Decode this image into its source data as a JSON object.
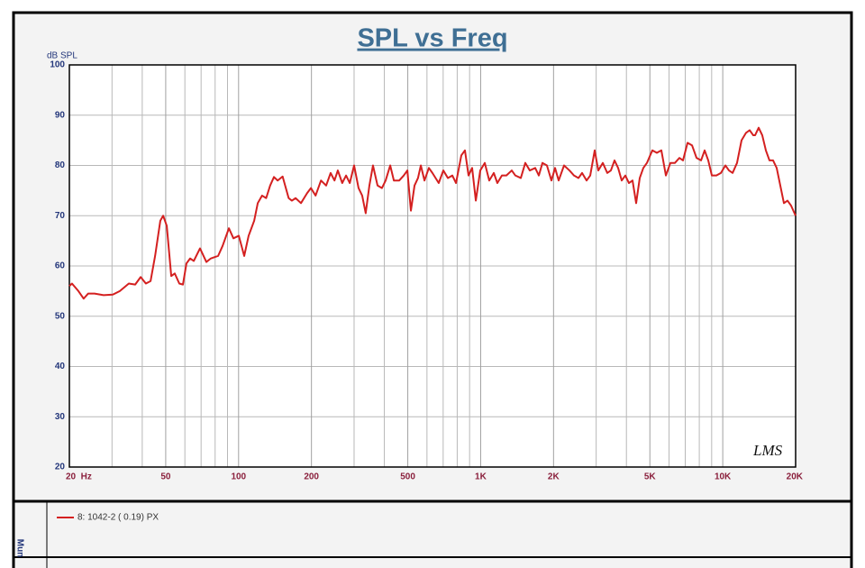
{
  "chart_data": {
    "type": "line",
    "title": "SPL vs Freq",
    "y_label": "dB SPL",
    "annotation": "LMS",
    "side_label": "Mun",
    "xscale": "log",
    "grid": true,
    "xlim": [
      20,
      20000
    ],
    "ylim": [
      20,
      100
    ],
    "yticks": [
      20,
      30,
      40,
      50,
      60,
      70,
      80,
      90,
      100
    ],
    "xticks": [
      {
        "value": 20,
        "label": "20  Hz"
      },
      50,
      100,
      200,
      500,
      {
        "value": 1000,
        "label": "1K"
      },
      {
        "value": 2000,
        "label": "2K"
      },
      {
        "value": 5000,
        "label": "5K"
      },
      {
        "value": 10000,
        "label": "10K"
      },
      {
        "value": 20000,
        "label": "20K"
      }
    ],
    "x_minor_ticks": [
      30,
      40,
      60,
      70,
      80,
      90,
      300,
      400,
      600,
      700,
      800,
      900,
      3000,
      4000,
      6000,
      7000,
      8000,
      9000
    ],
    "x": [
      20,
      20.5,
      21.8,
      22.9,
      23.9,
      25.4,
      27.7,
      30.2,
      32.3,
      35.2,
      37.4,
      39.4,
      41.4,
      43.3,
      45.2,
      47.5,
      48.8,
      50.5,
      52.7,
      54.5,
      56.9,
      58.9,
      60.9,
      63.1,
      65.3,
      69.3,
      73.6,
      76.8,
      82.3,
      85.9,
      91.2,
      95.2,
      100.2,
      105.5,
      110,
      116,
      120,
      125,
      130,
      135,
      140,
      145,
      152,
      161,
      166,
      172,
      181,
      192,
      199,
      208,
      219,
      230,
      240,
      249,
      257,
      268,
      278,
      288,
      300,
      313,
      324,
      335,
      347,
      359,
      375,
      391,
      405,
      423,
      438,
      461,
      481,
      498,
      515,
      533,
      551,
      566,
      586,
      611,
      632,
      671,
      701,
      732,
      764,
      791,
      832,
      861,
      891,
      922,
      955,
      996,
      1040,
      1085,
      1133,
      1172,
      1224,
      1277,
      1344,
      1391,
      1465,
      1529,
      1596,
      1680,
      1739,
      1800,
      1878,
      1960,
      2029,
      2100,
      2210,
      2327,
      2429,
      2536,
      2624,
      2739,
      2835,
      2958,
      3061,
      3195,
      3335,
      3451,
      3572,
      3697,
      3825,
      3959,
      4097,
      4240,
      4388,
      4541,
      4698,
      4862,
      5118,
      5343,
      5578,
      5823,
      6079,
      6345,
      6623,
      6853,
      7154,
      7467,
      7794,
      8136,
      8418,
      8712,
      9016,
      9411,
      9824,
      10254,
      10611,
      10982,
      11456,
      11958,
      12482,
      12918,
      13368,
      13599,
      14072,
      14563,
      15071,
      15597,
      16141,
      16705,
      17288,
      17891,
      18510,
      19158,
      20000
    ],
    "series": [
      {
        "name": "8: 1042-2 ( 0.19)  PX",
        "color": "#d42020",
        "values": [
          56,
          56.5,
          55,
          53.5,
          54.5,
          54.5,
          54.2,
          54.3,
          55,
          56.5,
          56.3,
          57.8,
          56.5,
          57,
          62,
          69,
          70,
          68,
          58,
          58.5,
          56.5,
          56.3,
          60.5,
          61.5,
          61,
          63.5,
          60.8,
          61.5,
          62,
          64,
          67.5,
          65.5,
          66,
          62,
          66,
          69,
          72.5,
          74,
          73.5,
          76,
          77.7,
          77,
          77.8,
          73.5,
          73,
          73.5,
          72.5,
          74.5,
          75.5,
          74,
          77,
          76,
          78.5,
          77,
          79,
          76.5,
          78,
          76.5,
          80,
          75.5,
          74,
          70.5,
          76,
          80,
          76,
          75.5,
          77,
          80,
          77,
          77,
          78,
          79,
          71,
          76,
          77.5,
          80,
          77,
          79.5,
          78.5,
          76.5,
          79,
          77.5,
          78,
          76.5,
          82,
          83,
          78,
          79.5,
          73,
          79,
          80.5,
          77,
          78.5,
          76.5,
          78,
          78,
          79,
          78,
          77.5,
          80.5,
          79,
          79.5,
          78,
          80.5,
          80,
          77,
          79.5,
          77,
          80,
          79,
          78,
          77.5,
          78.5,
          77,
          78,
          83,
          79,
          80.5,
          78.5,
          79,
          81,
          79.5,
          77,
          78,
          76.5,
          77,
          72.5,
          77.5,
          79.5,
          80.5,
          83,
          82.5,
          83,
          78,
          80.5,
          80.5,
          81.5,
          81,
          84.5,
          84,
          81.5,
          81,
          83,
          81,
          78,
          78,
          78.5,
          80,
          79,
          78.5,
          80.5,
          85,
          86.5,
          87,
          86,
          86,
          87.5,
          86,
          83,
          81,
          81,
          79.5,
          76,
          72.5,
          73,
          72,
          70
        ]
      }
    ]
  }
}
